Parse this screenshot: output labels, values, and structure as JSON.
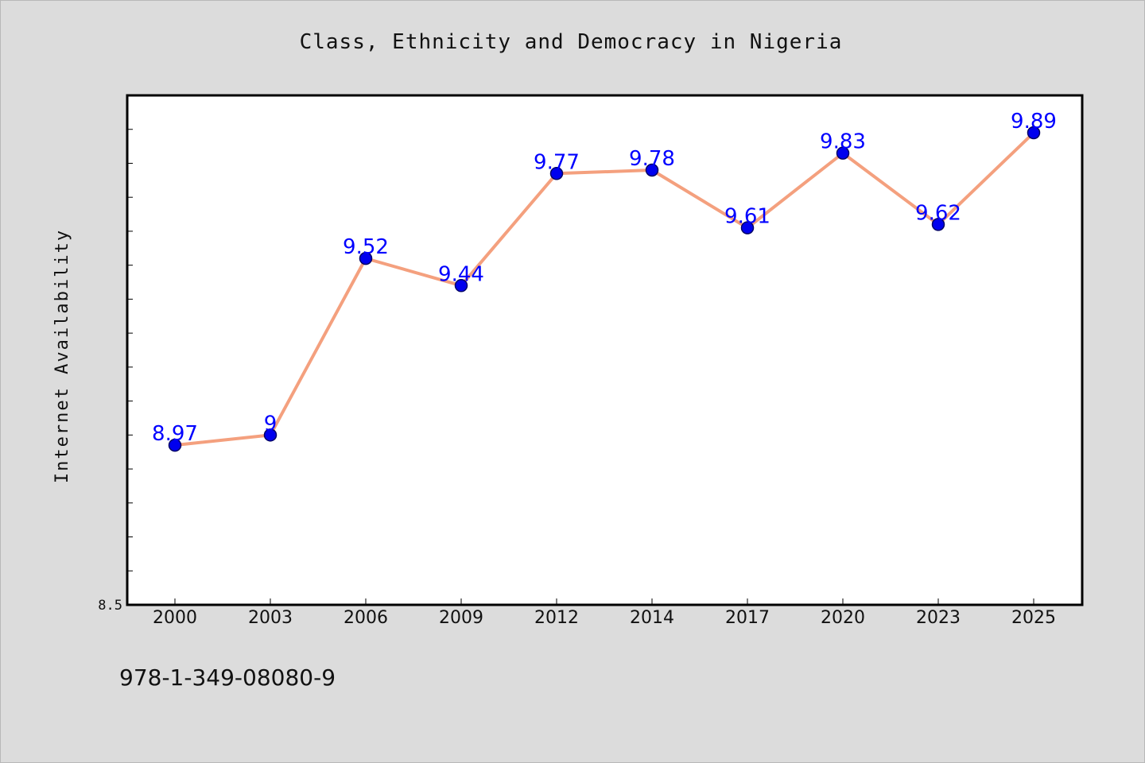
{
  "chart_data": {
    "type": "line",
    "title": "Class, Ethnicity and Democracy in Nigeria",
    "xlabel": "",
    "ylabel": "Internet Availability",
    "categories": [
      "2000",
      "2003",
      "2006",
      "2009",
      "2012",
      "2014",
      "2017",
      "2020",
      "2023",
      "2025"
    ],
    "series": [
      {
        "values": [
          8.97,
          9,
          9.52,
          9.44,
          9.77,
          9.78,
          9.61,
          9.83,
          9.62,
          9.89
        ],
        "labels": [
          "8.97",
          "9",
          "9.52",
          "9.44",
          "9.77",
          "9.78",
          "9.61",
          "9.83",
          "9.62",
          "9.89"
        ]
      }
    ],
    "ylim": [
      8.5,
      10
    ],
    "yticks": [
      8.5
    ],
    "ytick_labels": [
      "8.5"
    ],
    "grid": false,
    "legend": "none",
    "colors": {
      "line": "#f4a07e",
      "marker": "#0000ee",
      "marker_edge": "#000066",
      "data_label": "#0000ff",
      "plot_bg": "#ffffff",
      "figure_bg": "#dcdcdc"
    }
  },
  "footer": {
    "isbn": "978-1-349-08080-9"
  }
}
